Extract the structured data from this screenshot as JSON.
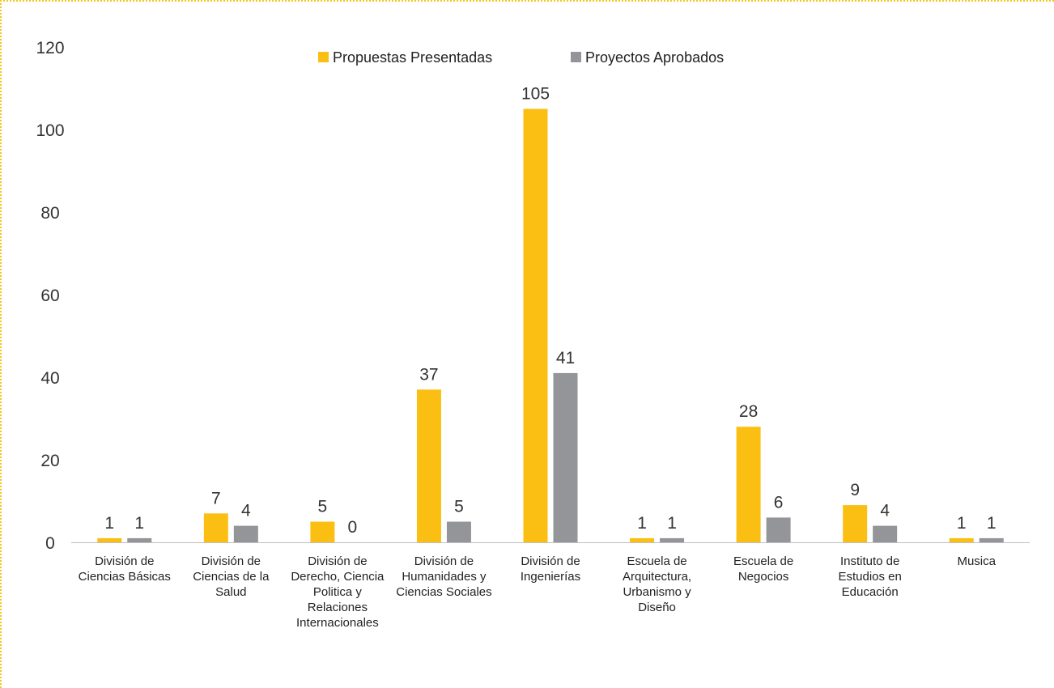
{
  "chart_data": {
    "type": "bar",
    "title": "",
    "xlabel": "",
    "ylabel": "",
    "ylim": [
      0,
      120
    ],
    "yticks": [
      0,
      20,
      40,
      60,
      80,
      100,
      120
    ],
    "grid": false,
    "legend_position": "top",
    "categories": [
      [
        "División de",
        "Ciencias Básicas"
      ],
      [
        "División de",
        "Ciencias de la",
        "Salud"
      ],
      [
        "División de",
        "Derecho, Ciencia",
        "Politica y",
        "Relaciones",
        "Internacionales"
      ],
      [
        "División de",
        "Humanidades y",
        "Ciencias Sociales"
      ],
      [
        "División de",
        "Ingenierías"
      ],
      [
        "Escuela de",
        "Arquitectura,",
        "Urbanismo y",
        "Diseño"
      ],
      [
        "Escuela de",
        "Negocios"
      ],
      [
        "Instituto de",
        "Estudios en",
        "Educación"
      ],
      [
        "Musica"
      ]
    ],
    "series": [
      {
        "name": "Propuestas Presentadas",
        "color": "#fbbf14",
        "values": [
          1,
          7,
          5,
          37,
          105,
          1,
          28,
          9,
          1
        ]
      },
      {
        "name": "Proyectos Aprobados",
        "color": "#939598",
        "values": [
          1,
          4,
          0,
          5,
          41,
          1,
          6,
          4,
          1
        ]
      }
    ]
  },
  "colors": {
    "border": "#f5c518",
    "axis": "#bfbfbf"
  }
}
